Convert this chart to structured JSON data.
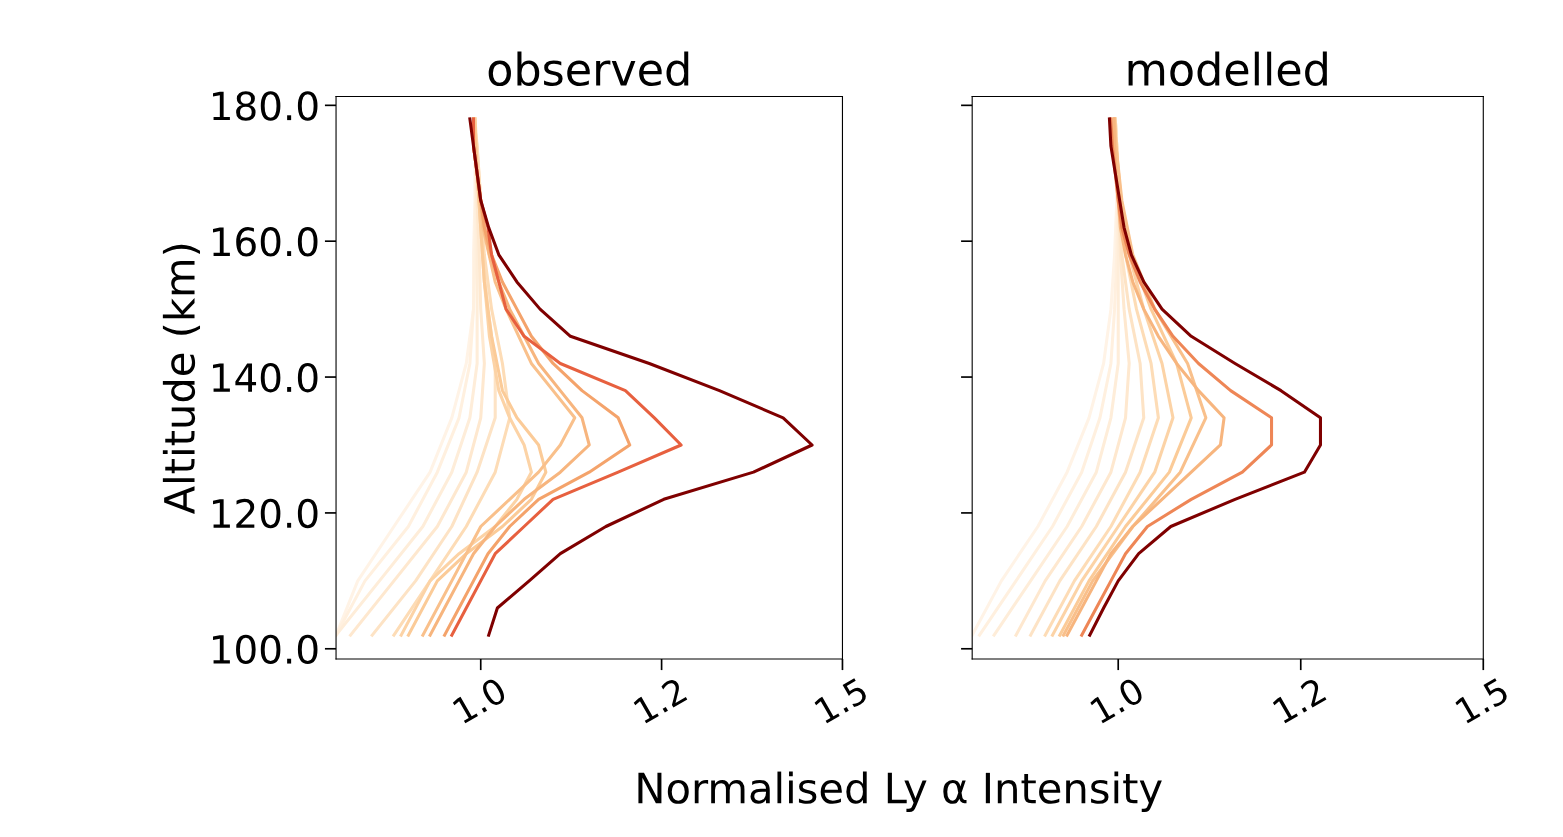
{
  "chart_data": [
    {
      "type": "line",
      "title": "observed",
      "ylabel": "Altitude (km)",
      "xlabel": "Normalised Ly α Intensity",
      "xlim": [
        0.8,
        1.5
      ],
      "ylim": [
        98.5,
        181.3
      ],
      "xticks": [
        {
          "value": 1.0,
          "label": "1.0"
        },
        {
          "value": 1.25,
          "label": "1.2"
        },
        {
          "value": 1.5,
          "label": "1.5"
        }
      ],
      "yticks": [
        {
          "value": 100,
          "label": "100.0"
        },
        {
          "value": 120,
          "label": "120.0"
        },
        {
          "value": 140,
          "label": "140.0"
        },
        {
          "value": 160,
          "label": "160.0"
        },
        {
          "value": 180,
          "label": "180.0"
        }
      ],
      "series": [
        {
          "color": "#fff3e6",
          "x": [
            0.8,
            0.83,
            0.88,
            0.93,
            0.96,
            0.98,
            0.99,
            0.99,
            0.992,
            0.992,
            0.99
          ],
          "values": [
            102,
            110,
            118,
            126,
            134,
            142,
            150,
            158,
            166,
            174,
            178
          ]
        },
        {
          "color": "#fff0df",
          "x": [
            0.8,
            0.84,
            0.9,
            0.94,
            0.97,
            0.985,
            0.99,
            0.992,
            0.993,
            0.993,
            0.99
          ],
          "values": [
            102,
            110,
            118,
            126,
            134,
            142,
            150,
            158,
            166,
            174,
            178
          ]
        },
        {
          "color": "#feedd9",
          "x": [
            0.8,
            0.86,
            0.92,
            0.96,
            0.985,
            0.995,
            0.995,
            0.995,
            0.995,
            0.993,
            0.99
          ],
          "values": [
            102,
            110,
            118,
            126,
            134,
            142,
            150,
            158,
            166,
            174,
            178
          ]
        },
        {
          "color": "#fee8cf",
          "x": [
            0.82,
            0.88,
            0.94,
            0.98,
            1.0,
            1.005,
            1.0,
            0.998,
            0.995,
            0.993,
            0.99
          ],
          "values": [
            102,
            110,
            118,
            126,
            134,
            142,
            150,
            158,
            166,
            174,
            178
          ]
        },
        {
          "color": "#fde3c5",
          "x": [
            0.85,
            0.91,
            0.96,
            0.995,
            1.02,
            1.02,
            1.01,
            1.003,
            1.0,
            0.995,
            0.992
          ],
          "values": [
            102,
            110,
            118,
            126,
            134,
            142,
            150,
            158,
            166,
            174,
            178
          ]
        },
        {
          "color": "#fddcb6",
          "x": [
            0.88,
            0.93,
            0.98,
            1.02,
            1.04,
            1.03,
            1.015,
            1.005,
            1.0,
            0.995,
            0.99
          ],
          "values": [
            102,
            110,
            118,
            126,
            134,
            142,
            150,
            158,
            166,
            174,
            178
          ]
        },
        {
          "color": "#fcd3a6",
          "x": [
            0.89,
            0.93,
            0.97,
            1.02,
            1.05,
            1.07,
            1.06,
            1.04,
            1.025,
            1.012,
            1.005,
            1.0,
            0.995,
            0.992
          ],
          "values": [
            102,
            110,
            114,
            118,
            122,
            126,
            130,
            134,
            138,
            146,
            154,
            162,
            170,
            178
          ]
        },
        {
          "color": "#fbcb98",
          "x": [
            0.9,
            0.94,
            0.98,
            1.03,
            1.07,
            1.09,
            1.08,
            1.05,
            1.03,
            1.015,
            1.005,
            1.0,
            0.995,
            0.992
          ],
          "values": [
            102,
            110,
            114,
            118,
            122,
            126,
            130,
            134,
            138,
            146,
            154,
            162,
            170,
            178
          ]
        },
        {
          "color": "#f9c08b",
          "x": [
            0.92,
            0.96,
            1.0,
            1.04,
            1.08,
            1.11,
            1.13,
            1.1,
            1.07,
            1.035,
            1.02,
            1.003,
            0.995,
            0.99
          ],
          "values": [
            102,
            110,
            118,
            122,
            126,
            130,
            134,
            138,
            142,
            150,
            154,
            162,
            170,
            178
          ]
        },
        {
          "color": "#f7b57e",
          "x": [
            0.93,
            0.95,
            0.97,
            0.99,
            1.02,
            1.06,
            1.11,
            1.15,
            1.14,
            1.11,
            1.08,
            1.06,
            1.04,
            1.025,
            1.012,
            1.005,
            1.0,
            0.995,
            0.99,
            0.99
          ],
          "values": [
            102,
            106,
            110,
            114,
            118,
            122,
            126,
            130,
            134,
            138,
            142,
            146,
            150,
            154,
            158,
            162,
            166,
            170,
            174,
            178
          ]
        },
        {
          "color": "#f4a36b",
          "x": [
            0.95,
            0.97,
            0.99,
            1.01,
            1.04,
            1.08,
            1.15,
            1.206,
            1.19,
            1.14,
            1.1,
            1.07,
            1.05,
            1.03,
            1.015,
            1.005,
            1.0,
            0.995,
            0.99,
            0.99
          ],
          "values": [
            102,
            106,
            110,
            114,
            118,
            122,
            126,
            130,
            134,
            138,
            142,
            146,
            150,
            154,
            158,
            162,
            166,
            170,
            174,
            178
          ]
        },
        {
          "color": "#e7603f",
          "x": [
            0.96,
            0.98,
            1.0,
            1.02,
            1.06,
            1.1,
            1.19,
            1.277,
            1.24,
            1.2,
            1.11,
            1.06,
            1.035,
            1.025,
            1.015,
            1.01,
            1.0,
            0.995,
            0.99,
            0.99
          ],
          "values": [
            102,
            106,
            110,
            114,
            118,
            122,
            126,
            130,
            134,
            138,
            142,
            146,
            150,
            154,
            158,
            162,
            166,
            170,
            174,
            178
          ]
        },
        {
          "color": "#7f0000",
          "x": [
            1.011,
            1.023,
            1.067,
            1.11,
            1.173,
            1.253,
            1.377,
            1.458,
            1.418,
            1.33,
            1.233,
            1.124,
            1.082,
            1.05,
            1.025,
            1.011,
            1.0,
            0.995,
            0.99,
            0.985
          ],
          "values": [
            102,
            106,
            110,
            114,
            118,
            122,
            126,
            130,
            134,
            138,
            142,
            146,
            150,
            154,
            158,
            162,
            166,
            170,
            174,
            178
          ]
        }
      ]
    },
    {
      "type": "line",
      "title": "modelled",
      "tick_labels": "x",
      "xlim": [
        0.8,
        1.5
      ],
      "ylim": [
        98.5,
        181.3
      ],
      "xticks": [
        {
          "value": 1.0,
          "label": "1.0"
        },
        {
          "value": 1.25,
          "label": "1.2"
        },
        {
          "value": 1.5,
          "label": "1.5"
        }
      ],
      "yticks": [
        100,
        120,
        140,
        160,
        180
      ],
      "series": [
        {
          "color": "#fff3e6",
          "x": [
            0.8,
            0.84,
            0.89,
            0.93,
            0.96,
            0.98,
            0.99,
            0.995,
            0.998,
            0.996,
            0.994
          ],
          "values": [
            102,
            110,
            118,
            126,
            134,
            142,
            150,
            158,
            166,
            174,
            178
          ]
        },
        {
          "color": "#fff0df",
          "x": [
            0.81,
            0.86,
            0.91,
            0.95,
            0.975,
            0.99,
            0.995,
            0.998,
            0.999,
            0.997,
            0.995
          ],
          "values": [
            102,
            110,
            118,
            126,
            134,
            142,
            150,
            158,
            166,
            174,
            178
          ]
        },
        {
          "color": "#feedd9",
          "x": [
            0.83,
            0.88,
            0.93,
            0.97,
            0.99,
            1.0,
            1.0,
            1.0,
            1.0,
            0.998,
            0.996
          ],
          "values": [
            102,
            110,
            118,
            126,
            134,
            142,
            150,
            158,
            166,
            174,
            178
          ]
        },
        {
          "color": "#fee8cf",
          "x": [
            0.86,
            0.9,
            0.95,
            0.99,
            1.01,
            1.015,
            1.008,
            1.003,
            1.0,
            0.998,
            0.996
          ],
          "values": [
            102,
            110,
            118,
            126,
            134,
            142,
            150,
            158,
            166,
            174,
            178
          ]
        },
        {
          "color": "#fde3c5",
          "x": [
            0.88,
            0.92,
            0.97,
            1.01,
            1.035,
            1.03,
            1.015,
            1.005,
            1.0,
            0.998,
            0.996
          ],
          "values": [
            102,
            110,
            118,
            126,
            134,
            142,
            150,
            158,
            166,
            174,
            178
          ]
        },
        {
          "color": "#fddcb6",
          "x": [
            0.9,
            0.94,
            0.99,
            1.03,
            1.055,
            1.045,
            1.025,
            1.01,
            1.002,
            0.998,
            0.996
          ],
          "values": [
            102,
            110,
            118,
            126,
            134,
            142,
            150,
            158,
            166,
            174,
            178
          ]
        },
        {
          "color": "#fcd3a6",
          "x": [
            0.91,
            0.95,
            1.0,
            1.05,
            1.075,
            1.06,
            1.035,
            1.015,
            1.003,
            0.997,
            0.995
          ],
          "values": [
            102,
            110,
            118,
            126,
            134,
            142,
            150,
            158,
            166,
            174,
            178
          ]
        },
        {
          "color": "#fbcb98",
          "x": [
            0.92,
            0.96,
            1.01,
            1.07,
            1.1,
            1.08,
            1.045,
            1.018,
            1.004,
            0.997,
            0.995
          ],
          "values": [
            102,
            110,
            118,
            126,
            134,
            142,
            150,
            158,
            166,
            174,
            178
          ]
        },
        {
          "color": "#f9c08b",
          "x": [
            0.925,
            0.965,
            1.02,
            1.085,
            1.12,
            1.095,
            1.05,
            1.02,
            1.005,
            0.997,
            0.995
          ],
          "values": [
            102,
            110,
            118,
            126,
            134,
            142,
            150,
            158,
            166,
            174,
            178
          ]
        },
        {
          "color": "#f7b57e",
          "x": [
            0.93,
            0.95,
            0.97,
            0.99,
            1.02,
            1.06,
            1.1,
            1.14,
            1.145,
            1.11,
            1.08,
            1.055,
            1.035,
            1.02,
            1.01,
            1.003,
            1.0,
            0.997,
            0.995,
            0.994
          ],
          "values": [
            102,
            106,
            110,
            114,
            118,
            122,
            126,
            130,
            134,
            138,
            142,
            146,
            150,
            154,
            158,
            162,
            166,
            170,
            174,
            178
          ]
        },
        {
          "color": "#ee8656",
          "x": [
            0.95,
            0.97,
            0.99,
            1.01,
            1.04,
            1.1,
            1.17,
            1.21,
            1.21,
            1.154,
            1.11,
            1.075,
            1.05,
            1.03,
            1.015,
            1.005,
            1.0,
            0.996,
            0.992,
            0.99
          ],
          "values": [
            102,
            106,
            110,
            114,
            118,
            122,
            126,
            130,
            134,
            138,
            142,
            146,
            150,
            154,
            158,
            162,
            166,
            170,
            174,
            178
          ]
        },
        {
          "color": "#7f0000",
          "x": [
            0.961,
            0.98,
            1.0,
            1.028,
            1.072,
            1.16,
            1.255,
            1.277,
            1.277,
            1.223,
            1.16,
            1.1,
            1.06,
            1.035,
            1.018,
            1.008,
            1.002,
            0.996,
            0.99,
            0.988
          ],
          "values": [
            102,
            106,
            110,
            114,
            118,
            122,
            126,
            130,
            134,
            138,
            142,
            146,
            150,
            154,
            158,
            162,
            166,
            170,
            174,
            178
          ]
        }
      ]
    }
  ]
}
